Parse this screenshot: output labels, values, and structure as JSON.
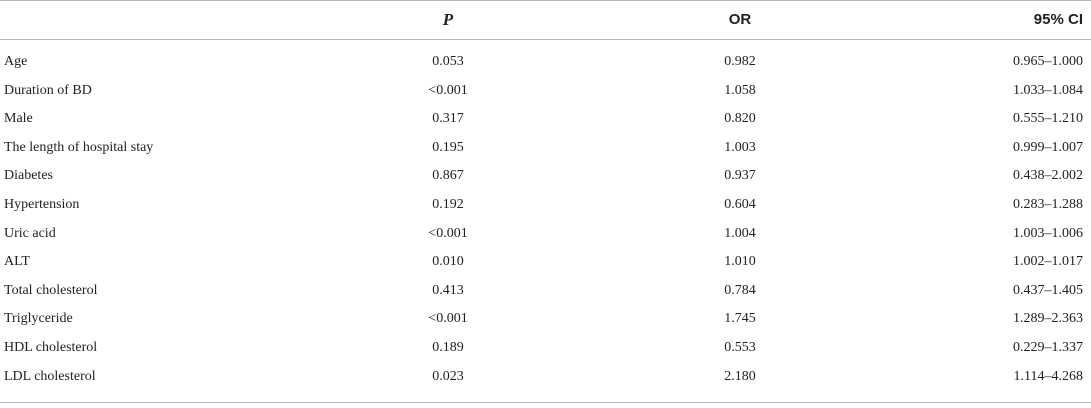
{
  "table": {
    "headers": {
      "label": "",
      "p": "P",
      "or": "OR",
      "ci": "95% CI"
    },
    "rows": [
      {
        "label": "Age",
        "p": "0.053",
        "or": "0.982",
        "ci": "0.965–1.000"
      },
      {
        "label": "Duration of BD",
        "p": "<0.001",
        "or": "1.058",
        "ci": "1.033–1.084"
      },
      {
        "label": "Male",
        "p": "0.317",
        "or": "0.820",
        "ci": "0.555–1.210"
      },
      {
        "label": "The length of hospital stay",
        "p": "0.195",
        "or": "1.003",
        "ci": "0.999–1.007"
      },
      {
        "label": "Diabetes",
        "p": "0.867",
        "or": "0.937",
        "ci": "0.438–2.002"
      },
      {
        "label": "Hypertension",
        "p": "0.192",
        "or": "0.604",
        "ci": "0.283–1.288"
      },
      {
        "label": "Uric acid",
        "p": "<0.001",
        "or": "1.004",
        "ci": "1.003–1.006"
      },
      {
        "label": "ALT",
        "p": "0.010",
        "or": "1.010",
        "ci": "1.002–1.017"
      },
      {
        "label": "Total cholesterol",
        "p": "0.413",
        "or": "0.784",
        "ci": "0.437–1.405"
      },
      {
        "label": "Triglyceride",
        "p": "<0.001",
        "or": "1.745",
        "ci": "1.289–2.363"
      },
      {
        "label": "HDL cholesterol",
        "p": "0.189",
        "or": "0.553",
        "ci": "0.229–1.337"
      },
      {
        "label": "LDL cholesterol",
        "p": "0.023",
        "or": "2.180",
        "ci": "1.114–4.268"
      }
    ]
  }
}
